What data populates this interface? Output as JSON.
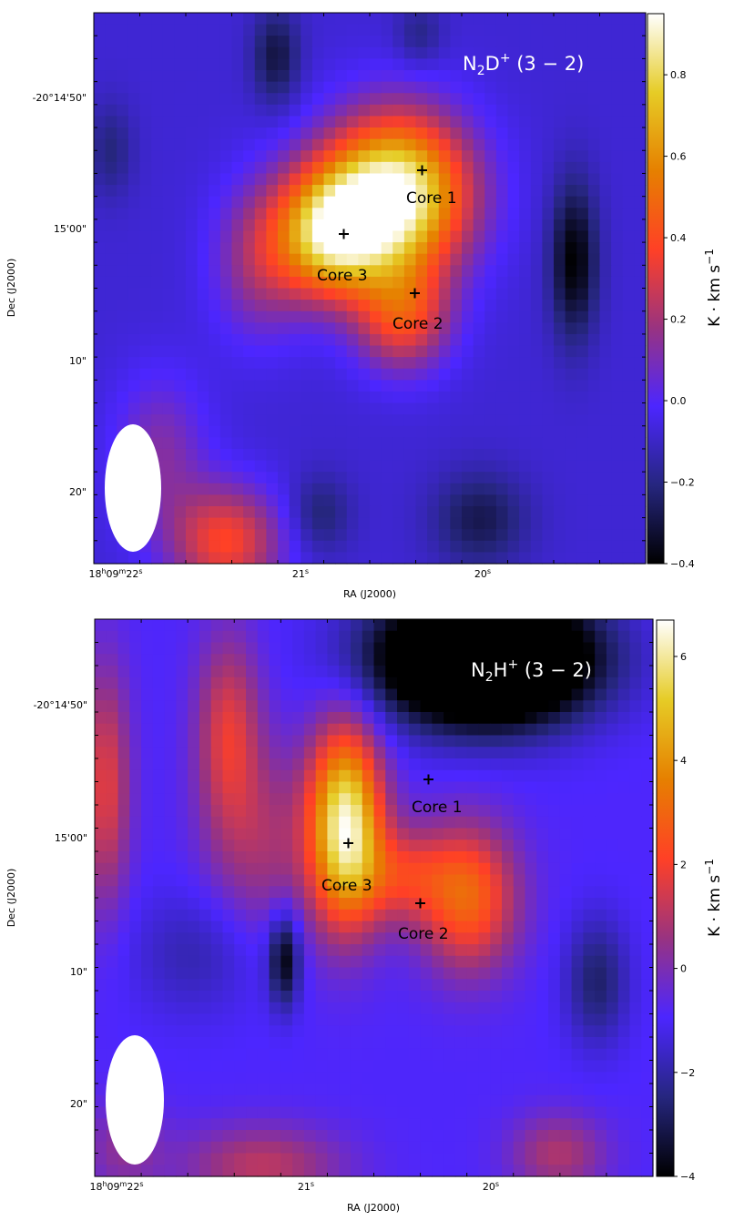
{
  "chart_data": [
    {
      "type": "heatmap",
      "title": "N$_2$D$^+$ (3−2)",
      "title_main": "N",
      "title_sub": "2",
      "title_mid": "D",
      "title_sup": "+",
      "title_tail": " (3 − 2)",
      "xlabel": "RA (J2000)",
      "ylabel": "Dec (J2000)",
      "x_ticks": [
        "18h09m22s",
        "21s",
        "20s"
      ],
      "x_tick_parts": [
        [
          "18",
          "h",
          "09",
          "m",
          "22",
          "s"
        ],
        [
          "21",
          "s"
        ],
        [
          "20",
          "s"
        ]
      ],
      "y_ticks": [
        "-20°14′50″",
        "15′00″",
        "10″",
        "20″"
      ],
      "y_tick_text": [
        "-20°14'50\"",
        "15'00\"",
        "10\"",
        "20\""
      ],
      "colorbar": {
        "label_main": "K · km s",
        "label_sup": "−1",
        "range": [
          -0.4,
          0.95
        ],
        "ticks": [
          "−0.4",
          "−0.2",
          "0.0",
          "0.2",
          "0.4",
          "0.6",
          "0.8"
        ],
        "tick_values": [
          -0.4,
          -0.2,
          0.0,
          0.2,
          0.4,
          0.6,
          0.8
        ],
        "colormap": "CMRmap"
      },
      "cores": [
        {
          "name": "Core 1",
          "ra_offset_s": 20.45,
          "dec_offset_arcsec": -14.5
        },
        {
          "name": "Core 2",
          "ra_offset_s": 20.47,
          "dec_offset_arcsec": -7.5
        },
        {
          "name": "Core 3",
          "ra_offset_s": 20.76,
          "dec_offset_arcsec": -12.0
        }
      ],
      "beam": "ellipse, bottom-left, white",
      "emission_peaks": [
        {
          "ra_s": 20.48,
          "dec_arcsec": 3.6,
          "value": 0.93
        },
        {
          "ra_s": 20.74,
          "dec_arcsec": 0.8,
          "value": 0.8
        }
      ]
    },
    {
      "type": "heatmap",
      "title": "N$_2$H$^+$ (3−2)",
      "title_main": "N",
      "title_sub": "2",
      "title_mid": "H",
      "title_sup": "+",
      "title_tail": " (3 − 2)",
      "xlabel": "RA (J2000)",
      "ylabel": "Dec (J2000)",
      "x_ticks": [
        "18h09m22s",
        "21s",
        "20s"
      ],
      "x_tick_parts": [
        [
          "18",
          "h",
          "09",
          "m",
          "22",
          "s"
        ],
        [
          "21",
          "s"
        ],
        [
          "20",
          "s"
        ]
      ],
      "y_ticks": [
        "-20°14′50″",
        "15′00″",
        "10″",
        "20″"
      ],
      "y_tick_text": [
        "-20°14'50\"",
        "15'00\"",
        "10\"",
        "20\""
      ],
      "colorbar": {
        "label_main": "K · km s",
        "label_sup": "−1",
        "range": [
          -4,
          6.7
        ],
        "ticks": [
          "−4",
          "−2",
          "0",
          "2",
          "4",
          "6"
        ],
        "tick_values": [
          -4,
          -2,
          0,
          2,
          4,
          6
        ],
        "colormap": "CMRmap"
      },
      "cores": [
        {
          "name": "Core 1",
          "ra_offset_s": 20.45,
          "dec_offset_arcsec": -14.5
        },
        {
          "name": "Core 2",
          "ra_offset_s": 20.47,
          "dec_offset_arcsec": -7.5
        },
        {
          "name": "Core 3",
          "ra_offset_s": 20.76,
          "dec_offset_arcsec": -12.0
        }
      ],
      "beam": "ellipse, bottom-left, white",
      "emission_peaks": [
        {
          "ra_s": 20.8,
          "dec_arcsec": 1.5,
          "value": 6.5
        },
        {
          "ra_s": 20.1,
          "dec_arcsec": -4.5,
          "value": 3.5
        }
      ]
    }
  ],
  "colors": {
    "cbar_stops": [
      "#000000",
      "#26267f",
      "#4c26ff",
      "#993380",
      "#ff4026",
      "#e68000",
      "#e6cc26",
      "#ffffff"
    ]
  }
}
